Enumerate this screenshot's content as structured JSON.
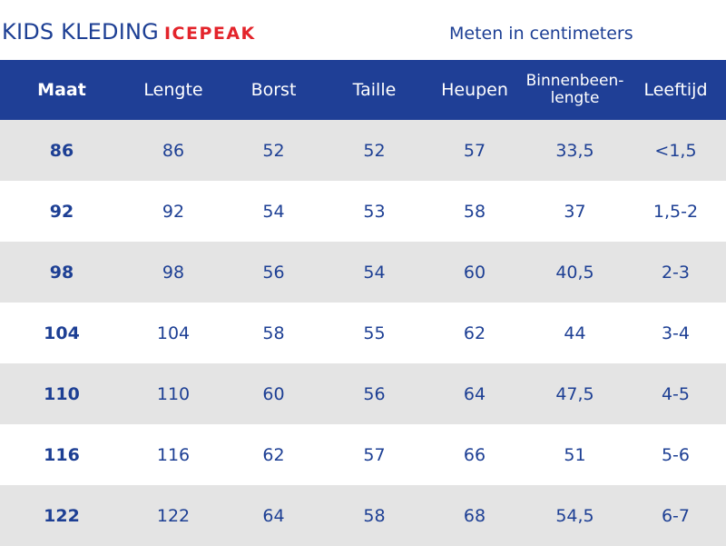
{
  "header": {
    "title": "KIDS KLEDING",
    "brand": "ICEPEAK",
    "unit_note": "Meten in centimeters"
  },
  "table": {
    "columns": [
      "Maat",
      "Lengte",
      "Borst",
      "Taille",
      "Heupen",
      "Binnenbeen-\nlengte",
      "Leeftijd"
    ],
    "rows": [
      [
        "86",
        "86",
        "52",
        "52",
        "57",
        "33,5",
        "<1,5"
      ],
      [
        "92",
        "92",
        "54",
        "53",
        "58",
        "37",
        "1,5-2"
      ],
      [
        "98",
        "98",
        "56",
        "54",
        "60",
        "40,5",
        "2-3"
      ],
      [
        "104",
        "104",
        "58",
        "55",
        "62",
        "44",
        "3-4"
      ],
      [
        "110",
        "110",
        "60",
        "56",
        "64",
        "47,5",
        "4-5"
      ],
      [
        "116",
        "116",
        "62",
        "57",
        "66",
        "51",
        "5-6"
      ],
      [
        "122",
        "122",
        "64",
        "58",
        "68",
        "54,5",
        "6-7"
      ]
    ]
  },
  "colors": {
    "header_bg": "#1f3f96",
    "text_blue": "#1d3f94",
    "brand_red": "#e3242b",
    "row_alt": "#e4e4e4"
  }
}
